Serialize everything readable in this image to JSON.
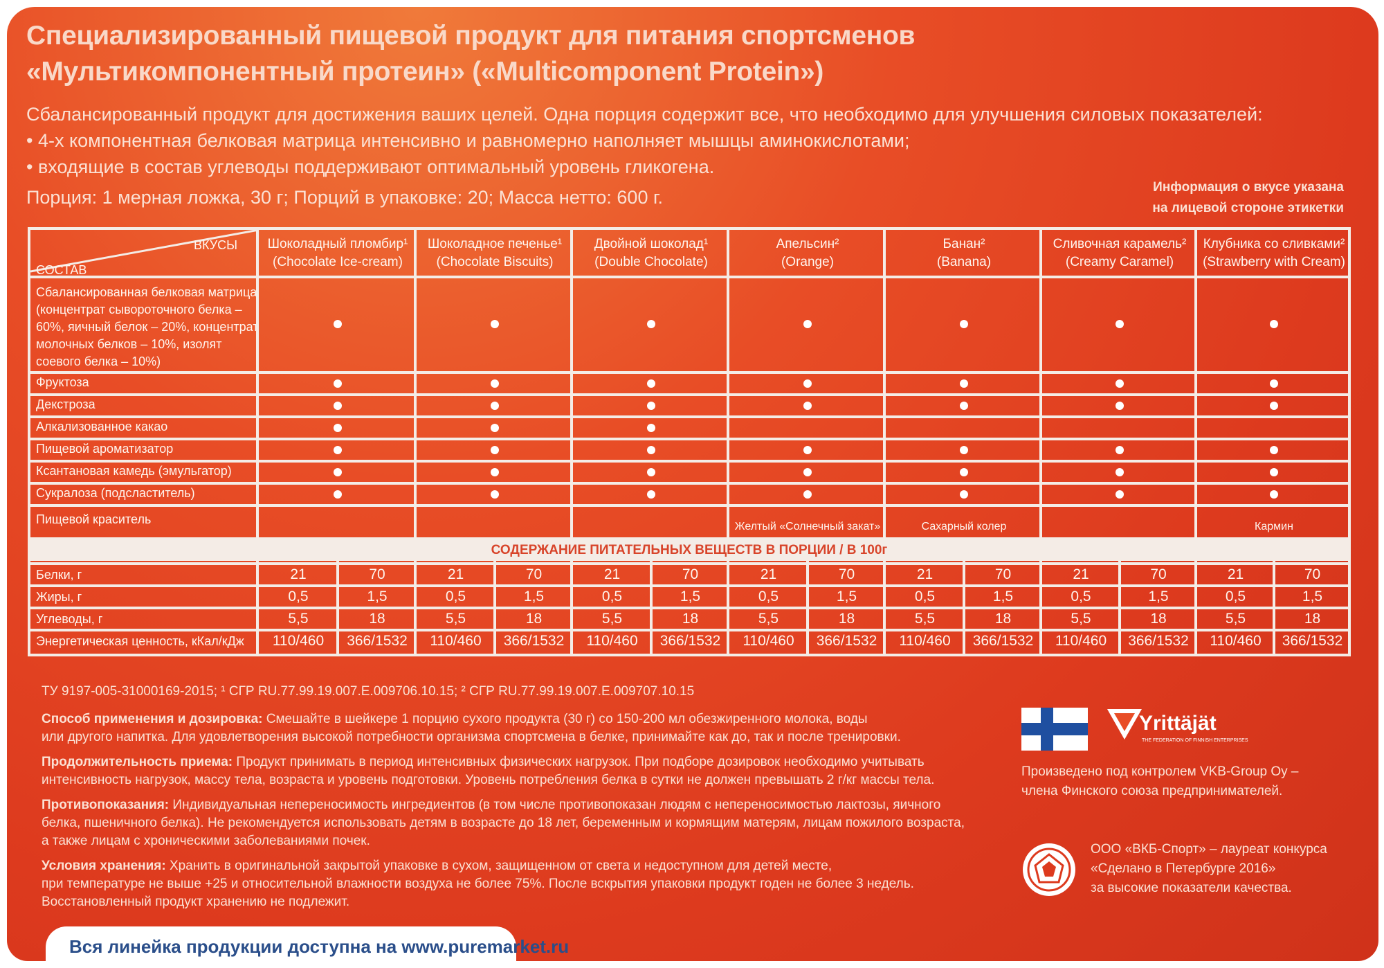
{
  "header": {
    "title_line1": "Специализированный пищевой продукт для питания спортсменов",
    "title_line2": "«Мультикомпонентный протеин» («Multicomponent Protein»)",
    "intro_line1": "Сбалансированный продукт для достижения ваших целей. Одна порция содержит все, что необходимо для улучшения силовых показателей:",
    "intro_line2": "• 4-х компонентная белковая матрица интенсивно и равномерно наполняет мышцы аминокислотами;",
    "intro_line3": "• входящие в состав углеводы поддерживают оптимальный уровень гликогена.",
    "portion": "Порция: 1 мерная ложка, 30 г; Порций в упаковке: 20; Масса нетто: 600 г.",
    "taste_info_line1": "Информация о вкусе указана",
    "taste_info_line2": "на лицевой стороне этикетки"
  },
  "table": {
    "corner_top": "ВКУСЫ",
    "corner_bottom": "СОСТАВ",
    "flavors": [
      {
        "ru": "Шоколадный пломбир¹",
        "en": "(Chocolate Ice-cream)"
      },
      {
        "ru": "Шоколадное печенье¹",
        "en": "(Chocolate Biscuits)"
      },
      {
        "ru": "Двойной шоколад¹",
        "en": "(Double Chocolate)"
      },
      {
        "ru": "Апельсин²",
        "en": "(Orange)"
      },
      {
        "ru": "Банан²",
        "en": "(Banana)"
      },
      {
        "ru": "Сливочная карамель²",
        "en": "(Creamy Caramel)"
      },
      {
        "ru": "Клубника со сливками²",
        "en": "(Strawberry with Cream)"
      }
    ],
    "matrix_label": [
      "Сбалансированная белковая матрица",
      "(концентрат сывороточного белка –",
      "60%, яичный белок – 20%, концентрат",
      "молочных белков – 10%, изолят",
      "соевого белка – 10%)"
    ],
    "ingredients": [
      {
        "label": "Фруктоза",
        "presence": [
          1,
          1,
          1,
          1,
          1,
          1,
          1
        ]
      },
      {
        "label": "Декстроза",
        "presence": [
          1,
          1,
          1,
          1,
          1,
          1,
          1
        ]
      },
      {
        "label": "Алкализованное какао",
        "presence": [
          1,
          1,
          1,
          0,
          0,
          0,
          0
        ]
      },
      {
        "label": "Пищевой ароматизатор",
        "presence": [
          1,
          1,
          1,
          1,
          1,
          1,
          1
        ]
      },
      {
        "label": "Ксантановая камедь (эмульгатор)",
        "presence": [
          1,
          1,
          1,
          1,
          1,
          1,
          1
        ]
      },
      {
        "label": "Сукралоза (подсластитель)",
        "presence": [
          1,
          1,
          1,
          1,
          1,
          1,
          1
        ]
      }
    ],
    "colorant_label": "Пищевой краситель",
    "colorants": [
      "",
      "",
      "",
      "Желтый «Солнечный закат»",
      "Сахарный колер",
      "",
      "Кармин"
    ],
    "nutrition_band": "СОДЕРЖАНИЕ ПИТАТЕЛЬНЫХ ВЕЩЕСТВ В ПОРЦИИ / В 100г",
    "nutrition": [
      {
        "label": "Белки, г",
        "portion": "21",
        "per100": "70"
      },
      {
        "label": "Жиры, г",
        "portion": "0,5",
        "per100": "1,5"
      },
      {
        "label": "Углеводы, г",
        "portion": "5,5",
        "per100": "18"
      },
      {
        "label": "Энергетическая ценность, кКал/кДж",
        "portion": "110/460",
        "per100": "366/1532"
      }
    ]
  },
  "footer": {
    "cert": "ТУ 9197-005-31000169-2015; ¹ СГР RU.77.99.19.007.Е.009706.10.15; ² СГР RU.77.99.19.007.Е.009707.10.15",
    "usage_title": "Способ применения и дозировка:",
    "usage_text1": " Смешайте в шейкере 1 порцию сухого продукта (30 г) со 150-200 мл обезжиренного молока, воды",
    "usage_text2": "или другого напитка. Для удовлетворения высокой потребности организма спортсмена в белке, принимайте как до, так и после тренировки.",
    "duration_title": "Продолжительность приема:",
    "duration_text1": " Продукт принимать в период интенсивных физических нагрузок. При подборе дозировок необходимо учитывать",
    "duration_text2": "интенсивность нагрузок, массу тела, возраста и уровень подготовки. Уровень потребления белка в сутки не должен превышать 2 г/кг массы тела.",
    "contra_title": "Противопоказания:",
    "contra_text1": " Индивидуальная непереносимость ингредиентов (в том числе противопоказан людям с непереносимостью лактозы, яичного",
    "contra_text2": "белка, пшеничного белка). Не рекомендуется использовать детям в возрасте до 18 лет, беременным и кормящим матерям, лицам пожилого возраста,",
    "contra_text3": "а также лицам с хроническими заболеваниями почек.",
    "storage_title": "Условия хранения:",
    "storage_text1": " Хранить в оригинальной закрытой упаковке в сухом, защищенном от света и недоступном для детей месте,",
    "storage_text2": "при температуре не выше +25 и относительной влажности воздуха не более 75%. После вскрытия упаковки продукт годен не более 3 недель.",
    "storage_text3": "Восстановленный продукт хранению не подлежит.",
    "website": "Вся линейка продукции доступна на www.puremarket.ru"
  },
  "right": {
    "yrittajat": "Yrittäjät",
    "yrittajat_sub": "THE FEDERATION OF FINNISH ENTERPRISES",
    "control_line1": "Произведено под контролем VKB-Group Oy –",
    "control_line2": "члена Финского союза предпринимателей.",
    "award_line1": "ООО «ВКБ-Спорт» – лауреат конкурса",
    "award_line2": "«Сделано в Петербурге 2016»",
    "award_line3": "за высокие показатели качества."
  }
}
